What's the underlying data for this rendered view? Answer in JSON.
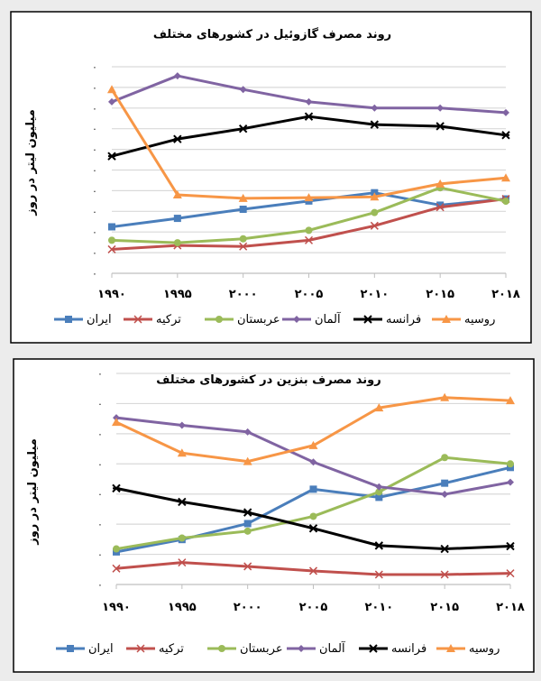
{
  "chart_data": [
    {
      "type": "line",
      "title": "روند مصرف گازوئیل در کشورهای مختلف",
      "ylabel": "میلیون لیتر در روز",
      "xlabel": "",
      "categories": [
        "۱۹۹۰",
        "۱۹۹۵",
        "۲۰۰۰",
        "۲۰۰۵",
        "۲۰۱۰",
        "۲۰۱۵",
        "۲۰۱۸"
      ],
      "y_tick_labels": [
        "٠",
        "٠",
        "٠",
        "٠",
        "٠",
        "٠",
        "٠",
        "٠",
        "٠",
        "٠",
        "٠"
      ],
      "ylim": [
        0,
        10
      ],
      "grid": true,
      "legend_position": "bottom",
      "series": [
        {
          "name": "ایران",
          "color": "#4a7ebb",
          "marker": "square",
          "values": [
            2.25,
            2.66,
            3.1,
            3.5,
            3.9,
            3.3,
            3.6
          ]
        },
        {
          "name": "ترکیه",
          "color": "#c0504d",
          "marker": "x",
          "values": [
            1.16,
            1.35,
            1.3,
            1.6,
            2.3,
            3.2,
            3.6
          ]
        },
        {
          "name": "عربستان",
          "color": "#9bbb59",
          "marker": "circle",
          "values": [
            1.6,
            1.48,
            1.67,
            2.08,
            2.94,
            4.14,
            3.49
          ]
        },
        {
          "name": "آلمان",
          "color": "#8064a2",
          "marker": "diamond",
          "values": [
            8.3,
            9.56,
            8.9,
            8.3,
            8.0,
            8.0,
            7.78
          ]
        },
        {
          "name": "فرانسه",
          "color": "#000000",
          "marker": "star",
          "values": [
            5.67,
            6.5,
            7.0,
            7.59,
            7.2,
            7.12,
            6.69
          ]
        },
        {
          "name": "روسیه",
          "color": "#f79646",
          "marker": "triangle",
          "values": [
            8.9,
            3.8,
            3.63,
            3.66,
            3.7,
            4.33,
            4.62
          ]
        }
      ]
    },
    {
      "type": "line",
      "title": "روند مصرف بنزین در کشورهای مختلف",
      "ylabel": "میلیون لیتر در روز",
      "xlabel": "",
      "categories": [
        "۱۹۹۰",
        "۱۹۹۵",
        "۲۰۰۰",
        "۲۰۰۵",
        "۲۰۱۰",
        "۲۰۱۵",
        "۲۰۱۸"
      ],
      "y_tick_labels": [
        "٠",
        "٠",
        "٠",
        "٠",
        "٠",
        "٠",
        "٠",
        "٠"
      ],
      "ylim": [
        0,
        7
      ],
      "grid": true,
      "legend_position": "bottom",
      "series": [
        {
          "name": "ایران",
          "color": "#4a7ebb",
          "marker": "square",
          "values": [
            1.08,
            1.49,
            2.02,
            3.16,
            2.89,
            3.36,
            3.88
          ]
        },
        {
          "name": "ترکیه",
          "color": "#c0504d",
          "marker": "x",
          "values": [
            0.53,
            0.73,
            0.6,
            0.45,
            0.33,
            0.33,
            0.37
          ]
        },
        {
          "name": "عربستان",
          "color": "#9bbb59",
          "marker": "circle",
          "values": [
            1.18,
            1.54,
            1.77,
            2.26,
            3.07,
            4.21,
            4.0
          ]
        },
        {
          "name": "آلمان",
          "color": "#8064a2",
          "marker": "diamond",
          "values": [
            5.53,
            5.28,
            5.06,
            4.06,
            3.24,
            2.99,
            3.39
          ]
        },
        {
          "name": "فرانسه",
          "color": "#000000",
          "marker": "star",
          "values": [
            3.19,
            2.74,
            2.39,
            1.86,
            1.29,
            1.18,
            1.27
          ]
        },
        {
          "name": "روسیه",
          "color": "#f79646",
          "marker": "triangle",
          "values": [
            5.38,
            4.36,
            4.08,
            4.61,
            5.86,
            6.2,
            6.1
          ]
        }
      ]
    }
  ]
}
